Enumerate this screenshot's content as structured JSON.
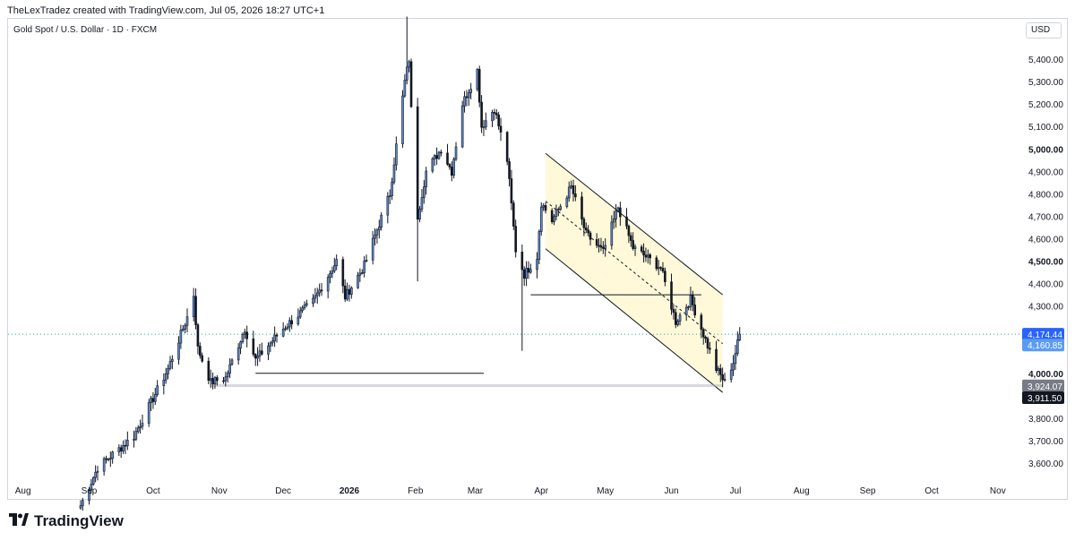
{
  "header": {
    "attribution": "TheLexTradez created with TradingView.com, Jul 05, 2026 18:27 UTC+1"
  },
  "symbol": {
    "title": "Gold Spot / U.S. Dollar · 1D · FXCM"
  },
  "currency": "USD",
  "footer": {
    "brand": "TradingView",
    "logo_icon": "tradingview-logo-icon"
  },
  "colors": {
    "bull_fill": "#5b8bd6",
    "bear_fill": "#131722",
    "channel_fill": "#fff9d9",
    "last_price_badge": "#2962ff",
    "prev_close_badge": "#5b9cf2"
  },
  "chart_data": {
    "type": "candlestick",
    "instrument": "Gold Spot / U.S. Dollar",
    "timeframe": "1D",
    "ylim": [
      3520,
      5580
    ],
    "y_ticks": [
      3600,
      3700,
      3800,
      3900,
      4000,
      4100,
      4200,
      4300,
      4400,
      4500,
      4600,
      4700,
      4800,
      4900,
      5000,
      5100,
      5200,
      5300,
      5400
    ],
    "y_tick_labels": [
      {
        "value": 3600,
        "label": "3,600.00",
        "bold": false
      },
      {
        "value": 3700,
        "label": "3,700.00",
        "bold": false
      },
      {
        "value": 3800,
        "label": "3,800.00",
        "bold": false
      },
      {
        "value": 4000,
        "label": "4,000.00",
        "bold": true
      },
      {
        "value": 4300,
        "label": "4,300.00",
        "bold": false
      },
      {
        "value": 4400,
        "label": "4,400.00",
        "bold": false
      },
      {
        "value": 4500,
        "label": "4,500.00",
        "bold": true
      },
      {
        "value": 4600,
        "label": "4,600.00",
        "bold": false
      },
      {
        "value": 4700,
        "label": "4,700.00",
        "bold": false
      },
      {
        "value": 4800,
        "label": "4,800.00",
        "bold": false
      },
      {
        "value": 4900,
        "label": "4,900.00",
        "bold": false
      },
      {
        "value": 5000,
        "label": "5,000.00",
        "bold": true
      },
      {
        "value": 5100,
        "label": "5,100.00",
        "bold": false
      },
      {
        "value": 5200,
        "label": "5,200.00",
        "bold": false
      },
      {
        "value": 5300,
        "label": "5,300.00",
        "bold": false
      },
      {
        "value": 5400,
        "label": "5,400.00",
        "bold": false
      }
    ],
    "x_range": [
      "2025-07-25",
      "2026-11-12"
    ],
    "x_ticks": [
      {
        "date": "2025-08-01",
        "label": "Aug",
        "bold": false
      },
      {
        "date": "2025-09-01",
        "label": "Sep",
        "bold": false
      },
      {
        "date": "2025-10-01",
        "label": "Oct",
        "bold": false
      },
      {
        "date": "2025-11-01",
        "label": "Nov",
        "bold": false
      },
      {
        "date": "2025-12-01",
        "label": "Dec",
        "bold": false
      },
      {
        "date": "2026-01-01",
        "label": "2026",
        "bold": true
      },
      {
        "date": "2026-02-01",
        "label": "Feb",
        "bold": false
      },
      {
        "date": "2026-03-01",
        "label": "Mar",
        "bold": false
      },
      {
        "date": "2026-04-01",
        "label": "Apr",
        "bold": false
      },
      {
        "date": "2026-05-01",
        "label": "May",
        "bold": false
      },
      {
        "date": "2026-06-01",
        "label": "Jun",
        "bold": false
      },
      {
        "date": "2026-07-01",
        "label": "Jul",
        "bold": false
      },
      {
        "date": "2026-08-01",
        "label": "Aug",
        "bold": false
      },
      {
        "date": "2026-09-01",
        "label": "Sep",
        "bold": false
      },
      {
        "date": "2026-10-01",
        "label": "Oct",
        "bold": false
      },
      {
        "date": "2026-11-01",
        "label": "Nov",
        "bold": false
      }
    ],
    "anchors": [
      {
        "date": "2025-08-28",
        "price": 3410
      },
      {
        "date": "2025-09-05",
        "price": 3580
      },
      {
        "date": "2025-09-22",
        "price": 3720
      },
      {
        "date": "2025-10-08",
        "price": 4020
      },
      {
        "date": "2025-10-17",
        "price": 4250
      },
      {
        "date": "2025-10-20",
        "price": 4350
      },
      {
        "date": "2025-10-22",
        "price": 4110
      },
      {
        "date": "2025-10-28",
        "price": 3960
      },
      {
        "date": "2025-11-04",
        "price": 3980
      },
      {
        "date": "2025-11-13",
        "price": 4200
      },
      {
        "date": "2025-11-18",
        "price": 4060
      },
      {
        "date": "2025-12-01",
        "price": 4200
      },
      {
        "date": "2025-12-15",
        "price": 4320
      },
      {
        "date": "2025-12-26",
        "price": 4500
      },
      {
        "date": "2025-12-30",
        "price": 4340
      },
      {
        "date": "2026-01-08",
        "price": 4480
      },
      {
        "date": "2026-01-20",
        "price": 4800
      },
      {
        "date": "2026-01-27",
        "price": 5300
      },
      {
        "date": "2026-01-29",
        "price": 5400
      },
      {
        "date": "2026-01-31",
        "price": 4950
      },
      {
        "date": "2026-02-02",
        "price": 4700
      },
      {
        "date": "2026-02-06",
        "price": 4900
      },
      {
        "date": "2026-02-13",
        "price": 5000
      },
      {
        "date": "2026-02-18",
        "price": 4900
      },
      {
        "date": "2026-02-23",
        "price": 5200
      },
      {
        "date": "2026-03-02",
        "price": 5350
      },
      {
        "date": "2026-03-04",
        "price": 5100
      },
      {
        "date": "2026-03-10",
        "price": 5180
      },
      {
        "date": "2026-03-16",
        "price": 4950
      },
      {
        "date": "2026-03-20",
        "price": 4550
      },
      {
        "date": "2026-03-24",
        "price": 4440
      },
      {
        "date": "2026-03-30",
        "price": 4520
      },
      {
        "date": "2026-04-01",
        "price": 4760
      },
      {
        "date": "2026-04-06",
        "price": 4680
      },
      {
        "date": "2026-04-15",
        "price": 4830
      },
      {
        "date": "2026-04-22",
        "price": 4620
      },
      {
        "date": "2026-04-30",
        "price": 4540
      },
      {
        "date": "2026-05-07",
        "price": 4740
      },
      {
        "date": "2026-05-14",
        "price": 4560
      },
      {
        "date": "2026-05-20",
        "price": 4520
      },
      {
        "date": "2026-05-27",
        "price": 4470
      },
      {
        "date": "2026-06-03",
        "price": 4230
      },
      {
        "date": "2026-06-10",
        "price": 4330
      },
      {
        "date": "2026-06-15",
        "price": 4200
      },
      {
        "date": "2026-06-22",
        "price": 4020
      },
      {
        "date": "2026-06-26",
        "price": 3960
      },
      {
        "date": "2026-06-30",
        "price": 4050
      },
      {
        "date": "2026-07-03",
        "price": 4174.44
      }
    ],
    "wick_spikes": [
      {
        "date": "2026-01-28",
        "high": 5590
      },
      {
        "date": "2026-02-02",
        "low": 4410
      },
      {
        "date": "2026-03-23",
        "low": 4100
      },
      {
        "date": "2026-02-28",
        "high": 5420
      }
    ],
    "last_price": {
      "value": 4174.44,
      "label": "4,174.44"
    },
    "prev_close": {
      "value": 4160.85,
      "label": "4,160.85"
    },
    "level_badges": [
      {
        "value": 3924.07,
        "label": "3,924.07",
        "style": "gray"
      },
      {
        "value": 3911.5,
        "label": "3,911.50",
        "style": "black"
      }
    ],
    "annotations": {
      "descending_channel": {
        "upper": [
          {
            "date": "2026-04-03",
            "price": 4980
          },
          {
            "date": "2026-06-25",
            "price": 4350
          }
        ],
        "lower": [
          {
            "date": "2026-04-03",
            "price": 4555
          },
          {
            "date": "2026-06-25",
            "price": 3915
          }
        ],
        "midline": [
          {
            "date": "2026-04-03",
            "price": 4767
          },
          {
            "date": "2026-06-25",
            "price": 4132
          }
        ]
      },
      "horizontal_lines": [
        {
          "start": "2025-11-18",
          "end": "2026-03-05",
          "price": 4000
        },
        {
          "start": "2026-03-27",
          "end": "2026-06-15",
          "price": 4350
        },
        {
          "start": "2025-10-28",
          "end": "2026-06-25",
          "price": 3945
        }
      ]
    }
  }
}
